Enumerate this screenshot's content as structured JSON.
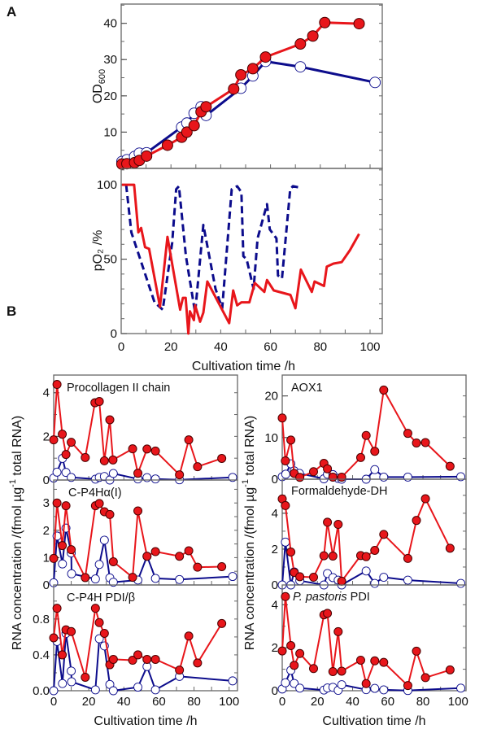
{
  "figure_labels": {
    "a": "A",
    "b": "B"
  },
  "colors": {
    "induced": "#e8161b",
    "control": "#0c0c8c",
    "marker_edge": "#4a0000"
  },
  "chart_data": [
    {
      "id": "od",
      "type": "line",
      "panel": "A",
      "ylabel": "OD",
      "ylabel_sub": "600",
      "xlim": [
        0,
        105
      ],
      "ylim": [
        0,
        45.3
      ],
      "yticks": [
        "0",
        "10",
        "20",
        "30",
        "40"
      ],
      "series": [
        {
          "name": "red",
          "x": [
            0.3,
            2.3,
            5.4,
            7.3,
            10.2,
            18.6,
            24.3,
            26.4,
            29.3,
            32.1,
            34.1,
            45.2,
            48.1,
            52.9,
            58,
            72,
            77,
            81.8,
            95.6
          ],
          "y": [
            1.2,
            1.3,
            1.6,
            2.2,
            3.4,
            6.4,
            8.6,
            10,
            11.8,
            15.6,
            17,
            21.9,
            25.8,
            27.5,
            30.7,
            34.3,
            36.5,
            40.2,
            39.9
          ]
        },
        {
          "name": "blue",
          "x": [
            0.3,
            2.3,
            5.4,
            7.3,
            10.2,
            24.3,
            26.4,
            29.3,
            32.1,
            34.1,
            48.1,
            52.9,
            58,
            72,
            102
          ],
          "y": [
            1.9,
            2.4,
            3.3,
            4.2,
            4.3,
            11.4,
            12.5,
            15.2,
            17,
            14.6,
            22.1,
            25.5,
            29.5,
            28,
            23.7
          ]
        }
      ]
    },
    {
      "id": "po2",
      "type": "line",
      "panel": "A",
      "ylabel": "pO₂ /%",
      "xlabel": "Cultivation time /h",
      "xlim": [
        0,
        105
      ],
      "ylim": [
        0,
        111
      ],
      "yticks": [
        "0",
        "50",
        "100"
      ],
      "xticks": [
        "0",
        "20",
        "40",
        "60",
        "80",
        "100"
      ],
      "series": [
        {
          "name": "red",
          "style": "solid",
          "x": [
            0.3,
            5.2,
            6.9,
            8,
            9.6,
            11.2,
            15.6,
            18.6,
            23.7,
            24.8,
            25.9,
            27,
            27.6,
            29.2,
            29.7,
            31.7,
            33,
            34.6,
            43.4,
            45,
            46.6,
            48.3,
            51.5,
            53.7,
            57.5,
            58.6,
            61.3,
            68,
            70,
            72.2,
            76.6,
            77.7,
            81.5,
            82.6,
            85.3,
            88.6,
            91.9,
            95.6
          ],
          "y": [
            100,
            100,
            68,
            71,
            58,
            57,
            18,
            65,
            16,
            24,
            24,
            0,
            15,
            9,
            19,
            8,
            14,
            35,
            7,
            29,
            19,
            21,
            21,
            34,
            28,
            36,
            29,
            26,
            17,
            43,
            28,
            35,
            32,
            45,
            47,
            48,
            56,
            67
          ]
        },
        {
          "name": "blue",
          "style": "dashed",
          "x": [
            2,
            4.1,
            13.4,
            16.7,
            20.5,
            22.1,
            23.2,
            26,
            29.7,
            33,
            37.9,
            40.6,
            44.4,
            46.6,
            48.3,
            49.1,
            50.4,
            53.2,
            54.8,
            58.6,
            59.7,
            62.4,
            63,
            64.6,
            67.9,
            69,
            72.2
          ],
          "y": [
            100,
            68,
            21,
            16,
            61,
            97,
            99,
            52,
            14,
            73,
            30,
            17,
            97,
            99,
            95,
            52,
            50,
            30,
            64,
            87,
            70,
            64,
            39,
            37,
            97,
            99,
            98
          ]
        }
      ]
    },
    {
      "id": "procollagen",
      "type": "line",
      "panel": "B",
      "title": "Procollagen II chain",
      "ylim": [
        0,
        4.81
      ],
      "yticks": [
        "0",
        "2",
        "4"
      ],
      "series": [
        {
          "name": "red",
          "x": [
            0,
            1.9,
            4.9,
            7,
            10,
            18,
            23.5,
            26,
            28.9,
            32,
            33.8,
            45,
            48,
            53.2,
            58,
            71.7,
            77,
            82,
            95.8
          ],
          "y": [
            1.84,
            4.38,
            2.1,
            1.17,
            1.73,
            1.03,
            3.54,
            3.6,
            0.88,
            2.76,
            0.92,
            1.43,
            0.31,
            1.42,
            1.33,
            0.24,
            1.84,
            0.61,
            0.99
          ]
        },
        {
          "name": "blue",
          "x": [
            0,
            1.9,
            5,
            7,
            10,
            23.8,
            26,
            28.9,
            32,
            34,
            48,
            53.2,
            58,
            71.7,
            102
          ],
          "y": [
            0.09,
            0.36,
            0.99,
            0.35,
            0.12,
            0.04,
            0.12,
            0.16,
            0,
            0.3,
            0.05,
            0.11,
            0.05,
            0.01,
            0.12
          ]
        }
      ]
    },
    {
      "id": "cp4ha",
      "type": "line",
      "panel": "B",
      "title": "C-P4Hα(I)",
      "ylim": [
        0,
        3.84
      ],
      "yticks": [
        "0",
        "1",
        "2",
        "3"
      ],
      "series": [
        {
          "name": "red",
          "x": [
            0,
            1.9,
            4.9,
            7,
            10,
            18,
            23.8,
            26,
            28.9,
            32,
            34,
            45,
            48,
            53.2,
            58,
            71.7,
            77,
            82,
            95.8
          ],
          "y": [
            0.97,
            3.0,
            1.44,
            2.9,
            1.29,
            0.27,
            2.9,
            2.98,
            2.68,
            2.58,
            0.85,
            0.28,
            2.71,
            1.05,
            1.22,
            1.05,
            1.25,
            0.65,
            0.67
          ]
        },
        {
          "name": "blue",
          "x": [
            0,
            1.9,
            5,
            7,
            10,
            10.2,
            23.8,
            26,
            28.9,
            32,
            34,
            48,
            53.2,
            58,
            71.7,
            102
          ],
          "y": [
            0.08,
            1.79,
            0.77,
            2.08,
            1.17,
            0.41,
            0.22,
            0.75,
            1.64,
            0.26,
            0.1,
            0.18,
            1.05,
            0.24,
            0.2,
            0.31
          ]
        }
      ]
    },
    {
      "id": "cp4h_pdi",
      "type": "line",
      "panel": "B",
      "title": "C-P4H PDI/β",
      "ylim": [
        0,
        1.18
      ],
      "yticks": [
        "0.0",
        "0.4",
        "0.8"
      ],
      "xticks": [
        "0",
        "20",
        "40",
        "60",
        "80",
        "100"
      ],
      "xlabel": "Cultivation time /h",
      "series": [
        {
          "name": "red",
          "x": [
            0,
            1.9,
            4.9,
            7,
            10,
            18,
            23.8,
            26,
            28.9,
            32,
            34,
            45,
            48,
            53.2,
            58,
            71.7,
            77,
            82,
            95.8
          ],
          "y": [
            0.59,
            0.92,
            0.4,
            0.68,
            0.66,
            0.15,
            0.92,
            0.76,
            0.64,
            0.29,
            0.35,
            0.34,
            0.4,
            0.35,
            0.35,
            0.23,
            0.61,
            0.31,
            0.75
          ]
        },
        {
          "name": "blue",
          "x": [
            0,
            1.9,
            5,
            7,
            10,
            10.2,
            23.8,
            26,
            28.9,
            32,
            34,
            48,
            53.2,
            58,
            71.7,
            102
          ],
          "y": [
            0,
            0.55,
            0.08,
            0.64,
            0.22,
            0.1,
            0.01,
            0.58,
            0.5,
            0.07,
            0,
            0.04,
            0.27,
            0.01,
            0.16,
            0.11
          ]
        }
      ]
    },
    {
      "id": "aox1",
      "type": "line",
      "panel": "B",
      "title": "AOX1",
      "ylim": [
        0,
        25
      ],
      "yticks": [
        "0",
        "10",
        "20"
      ],
      "series": [
        {
          "name": "red",
          "x": [
            0,
            1.8,
            4.9,
            6.8,
            10,
            17.8,
            23.7,
            25.7,
            28.8,
            33.8,
            44.6,
            47.7,
            52.6,
            57.7,
            71.4,
            76.3,
            81.4,
            95.4
          ],
          "y": [
            14.7,
            4.4,
            9.4,
            1.4,
            0.45,
            1.8,
            3.8,
            2.5,
            0.5,
            0.5,
            5.2,
            10.5,
            6.7,
            21.4,
            11,
            8.7,
            8.8,
            3.1
          ]
        },
        {
          "name": "blue",
          "x": [
            0,
            2,
            4.9,
            6.8,
            9.8,
            23.7,
            25.7,
            28.8,
            31.8,
            33.8,
            47.7,
            52.6,
            57.7,
            71.4,
            101.5
          ],
          "y": [
            0.6,
            1.2,
            3.7,
            2,
            1.4,
            0.1,
            1.2,
            1.1,
            0.2,
            0,
            0,
            2.3,
            0.5,
            0.5,
            0.6
          ]
        }
      ]
    },
    {
      "id": "fdh",
      "type": "line",
      "panel": "B",
      "title": "Formaldehyde-DH",
      "ylim": [
        0,
        5.9
      ],
      "yticks": [
        "0",
        "2",
        "4"
      ],
      "series": [
        {
          "name": "red",
          "x": [
            0,
            1.8,
            4.9,
            6.8,
            10,
            17.8,
            23.7,
            25.7,
            28.8,
            31.8,
            33.8,
            44.6,
            47.7,
            52.6,
            57.7,
            71.4,
            76.3,
            81.4,
            95.4
          ],
          "y": [
            4.8,
            4.43,
            1.84,
            0.7,
            0.46,
            0.43,
            1.63,
            3.5,
            1.61,
            3.38,
            0.21,
            1.64,
            1.58,
            1.93,
            2.82,
            1.48,
            3.6,
            4.81,
            2.05
          ]
        },
        {
          "name": "blue",
          "x": [
            0,
            1.8,
            4.9,
            6.8,
            10,
            23.7,
            25.7,
            28.8,
            31.8,
            33.8,
            47.7,
            52.6,
            57.7,
            71.4,
            101.5
          ],
          "y": [
            0,
            2.39,
            0,
            0.73,
            0.24,
            0,
            0.64,
            0.41,
            0.27,
            0,
            0.78,
            0.09,
            0.43,
            0.27,
            0.09
          ]
        }
      ]
    },
    {
      "id": "pp_pdi",
      "type": "line",
      "panel": "B",
      "title_italic": "P. pastoris",
      "title": " PDI",
      "ylim": [
        0,
        4.92
      ],
      "yticks": [
        "0",
        "2",
        "4"
      ],
      "xticks": [
        "0",
        "20",
        "40",
        "60",
        "80",
        "100"
      ],
      "xlabel": "Cultivation time /h",
      "series": [
        {
          "name": "red",
          "x": [
            0,
            1.8,
            4.9,
            6.8,
            10,
            17.8,
            23.7,
            25.7,
            28.8,
            31.8,
            33.8,
            44.6,
            47.7,
            52.6,
            57.7,
            71.4,
            76.3,
            81.4,
            95.4
          ],
          "y": [
            1.85,
            4.38,
            2.1,
            1.18,
            1.73,
            1.03,
            3.53,
            3.6,
            0.89,
            2.75,
            0.91,
            1.42,
            0.33,
            1.39,
            1.32,
            0.24,
            1.84,
            0.61,
            0.97
          ]
        },
        {
          "name": "blue",
          "x": [
            0,
            1.8,
            4.9,
            6.8,
            10,
            23.7,
            25.7,
            28.8,
            31.8,
            33.8,
            47.7,
            52.6,
            57.7,
            71.4,
            101.5
          ],
          "y": [
            0.08,
            0.37,
            0.95,
            0.34,
            0.12,
            0.03,
            0.13,
            0.16,
            0.02,
            0.28,
            0.05,
            0.11,
            0.04,
            0.01,
            0.12
          ]
        }
      ]
    }
  ],
  "b_ylabel_main": "RNA concentration /(fmol µg",
  "b_ylabel_sup": "-1",
  "b_ylabel_tail": " total RNA)"
}
